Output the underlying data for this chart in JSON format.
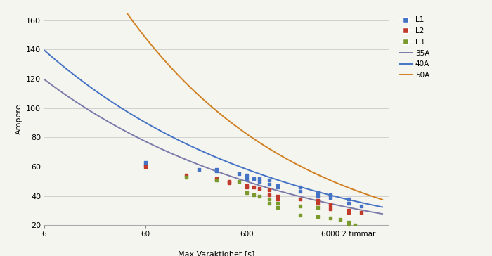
{
  "title": "",
  "xlabel": "Max Varaktighet [s]",
  "ylabel": "Ampere",
  "xlim": [
    6,
    15000
  ],
  "ylim": [
    20,
    165
  ],
  "yticks": [
    20,
    40,
    60,
    80,
    100,
    120,
    140,
    160
  ],
  "xtick_positions": [
    6,
    60,
    600,
    6000
  ],
  "xtick_labels": [
    "6",
    "60",
    "600",
    "6000 2 timmar"
  ],
  "grid_color": "#d0d0d0",
  "bg_color": "#f5f5f0",
  "curve_35A": {
    "C": 168.0,
    "b": -0.19,
    "color": "#7b7bab"
  },
  "curve_40A": {
    "C": 196.0,
    "b": -0.19,
    "color": "#4472c4"
  },
  "curve_50A": {
    "C": 420.0,
    "b": -0.255,
    "color": "#d08020"
  },
  "L1_color": "#4472c4",
  "L2_color": "#c0392b",
  "L3_color": "#7a9a2e",
  "scatter": {
    "L1": [
      [
        60,
        63
      ],
      [
        60,
        61
      ],
      [
        200,
        58
      ],
      [
        300,
        58
      ],
      [
        300,
        57
      ],
      [
        500,
        55
      ],
      [
        600,
        54
      ],
      [
        600,
        52
      ],
      [
        700,
        52
      ],
      [
        800,
        52
      ],
      [
        800,
        50
      ],
      [
        1000,
        51
      ],
      [
        1000,
        48
      ],
      [
        1200,
        47
      ],
      [
        1200,
        46
      ],
      [
        2000,
        46
      ],
      [
        2000,
        43
      ],
      [
        3000,
        42
      ],
      [
        3000,
        40
      ],
      [
        4000,
        41
      ],
      [
        4000,
        39
      ],
      [
        6000,
        38
      ],
      [
        6000,
        35
      ],
      [
        8000,
        33
      ]
    ],
    "L2": [
      [
        60,
        60
      ],
      [
        150,
        54
      ],
      [
        300,
        52
      ],
      [
        400,
        50
      ],
      [
        400,
        49
      ],
      [
        600,
        47
      ],
      [
        600,
        46
      ],
      [
        700,
        46
      ],
      [
        800,
        45
      ],
      [
        1000,
        44
      ],
      [
        1000,
        41
      ],
      [
        1200,
        40
      ],
      [
        1200,
        38
      ],
      [
        2000,
        38
      ],
      [
        3000,
        37
      ],
      [
        3000,
        35
      ],
      [
        4000,
        34
      ],
      [
        4000,
        31
      ],
      [
        6000,
        30
      ],
      [
        6000,
        29
      ],
      [
        8000,
        29
      ]
    ],
    "L3": [
      [
        150,
        53
      ],
      [
        300,
        51
      ],
      [
        500,
        50
      ],
      [
        600,
        42
      ],
      [
        700,
        41
      ],
      [
        800,
        40
      ],
      [
        1000,
        38
      ],
      [
        1000,
        35
      ],
      [
        1200,
        35
      ],
      [
        1200,
        32
      ],
      [
        2000,
        33
      ],
      [
        2000,
        27
      ],
      [
        3000,
        32
      ],
      [
        3000,
        26
      ],
      [
        4000,
        25
      ],
      [
        5000,
        24
      ],
      [
        6000,
        22
      ],
      [
        6000,
        20
      ],
      [
        7000,
        20
      ]
    ]
  },
  "legend_labels": [
    "L1",
    "L2",
    "L3",
    "35A",
    "40A",
    "50A"
  ]
}
